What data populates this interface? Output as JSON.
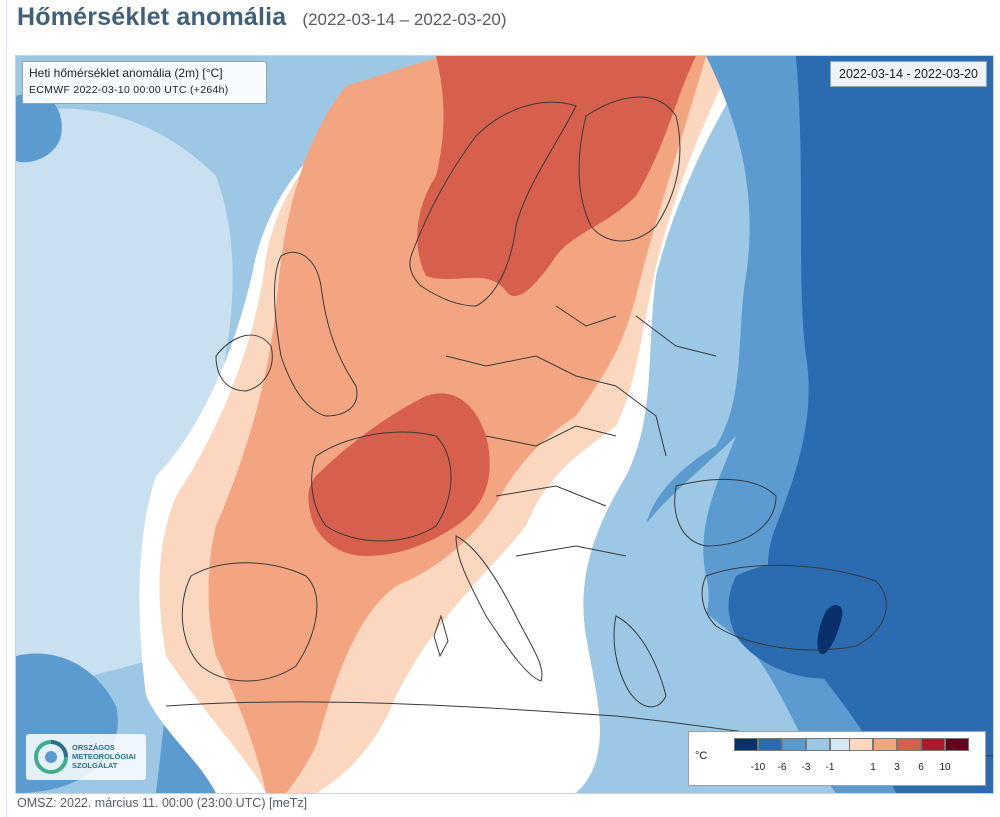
{
  "header": {
    "title": "Hőmérséklet anomália",
    "period": "(2022-03-14 – 2022-03-20)"
  },
  "map": {
    "info_title": "Heti hőmérséklet anomália (2m) [°C]",
    "model_run": "ECMWF 2022-03-10 00:00 UTC (+264h)",
    "date_range": "2022-03-14 - 2022-03-20",
    "logo_text": "ORSZÁGOS\nMETEOROLÓGIAI\nSZOLGÁLAT",
    "logo_icon": "omsz-swirl-icon"
  },
  "legend": {
    "unit": "°C",
    "cold_labels": [
      "-10",
      "-6",
      "-3",
      "-1"
    ],
    "warm_labels": [
      "1",
      "3",
      "6",
      "10"
    ],
    "cold_colors": [
      "#08306b",
      "#2b6bb0",
      "#5b9bd0",
      "#9cc8e6",
      "#d4e8f4"
    ],
    "warm_colors": [
      "#fcd7c0",
      "#f3a582",
      "#d6604d",
      "#b2182b",
      "#67001f"
    ],
    "neutral_color": "#ffffff"
  },
  "footer": {
    "text": "OMSZ: 2022. március 11. 00:00 (23:00  UTC)  [meTz]"
  }
}
